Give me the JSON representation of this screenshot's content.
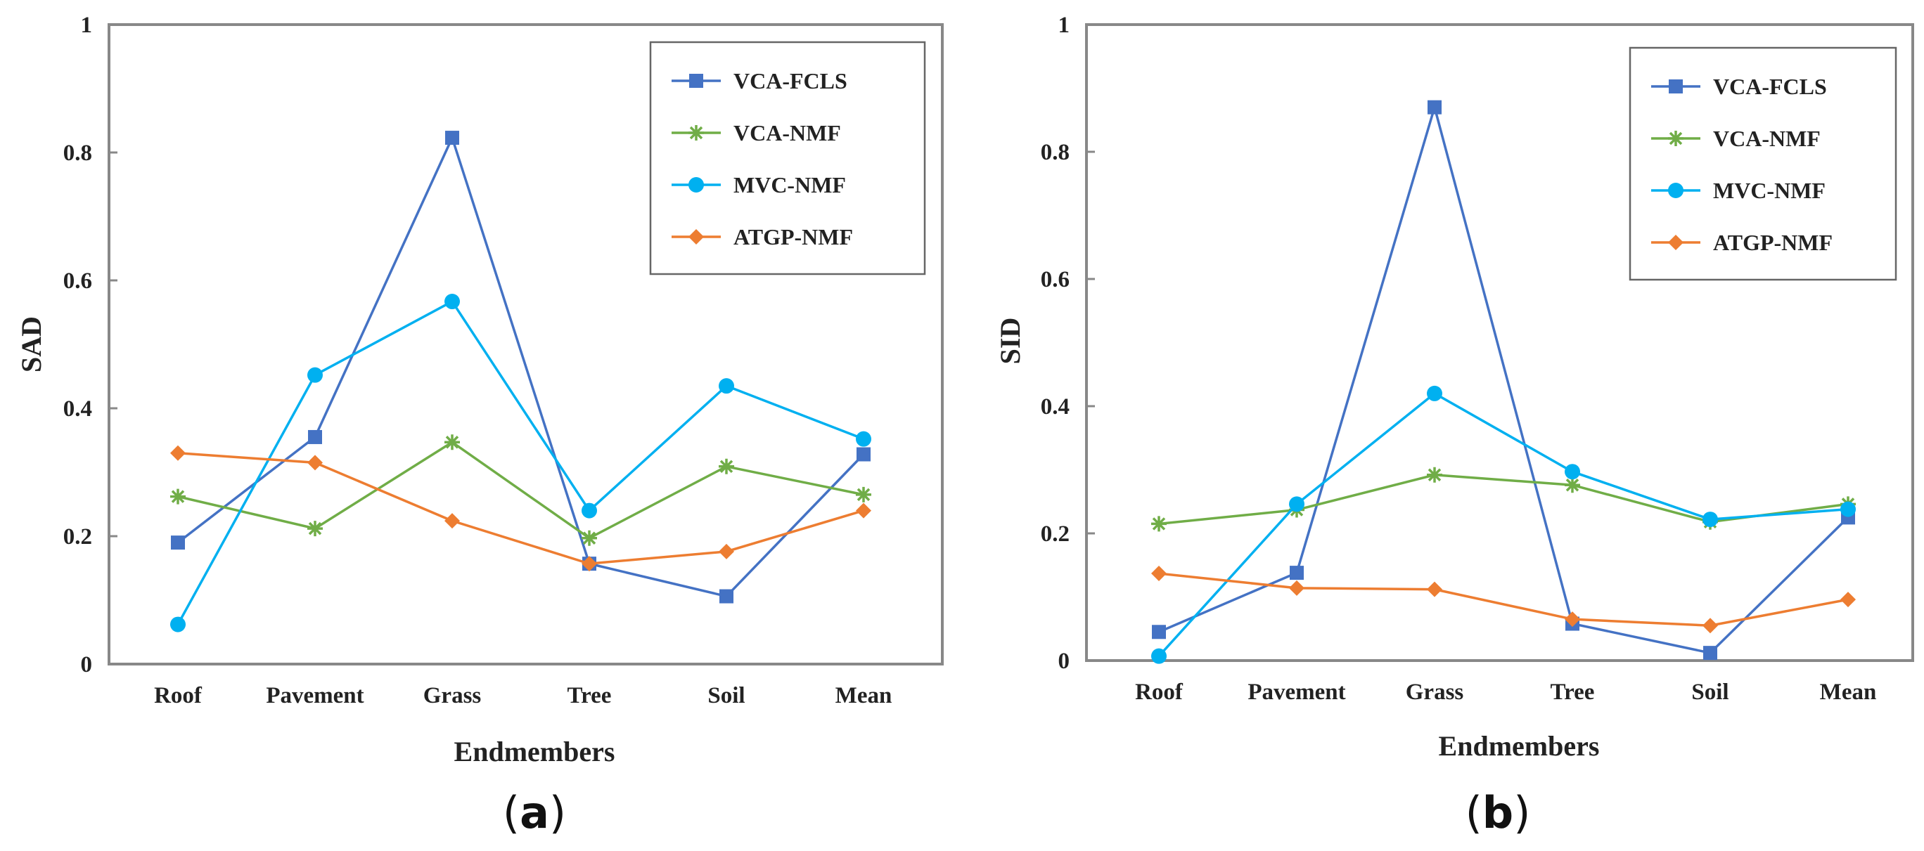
{
  "chart_data": [
    {
      "type": "line",
      "panel_label": "a",
      "title": "",
      "xlabel": "Endmembers",
      "ylabel": "SAD",
      "ylim": [
        0,
        1
      ],
      "y_ticks": [
        "0",
        "0.2",
        "0.4",
        "0.6",
        "0.8",
        "1"
      ],
      "categories": [
        "Roof",
        "Pavement",
        "Grass",
        "Tree",
        "Soil",
        "Mean"
      ],
      "legend_position": "top-right",
      "series": [
        {
          "name": "VCA-FCLS",
          "color": "#4472C4",
          "marker": "square",
          "values": [
            0.19,
            0.355,
            0.823,
            0.157,
            0.106,
            0.328
          ]
        },
        {
          "name": "VCA-NMF",
          "color": "#70AD47",
          "marker": "star",
          "values": [
            0.262,
            0.212,
            0.347,
            0.197,
            0.309,
            0.265
          ]
        },
        {
          "name": "MVC-NMF",
          "color": "#00B0F0",
          "marker": "circle",
          "values": [
            0.062,
            0.452,
            0.567,
            0.24,
            0.435,
            0.352
          ]
        },
        {
          "name": "ATGP-NMF",
          "color": "#ED7D31",
          "marker": "diamond",
          "values": [
            0.33,
            0.315,
            0.224,
            0.157,
            0.176,
            0.24
          ]
        }
      ]
    },
    {
      "type": "line",
      "panel_label": "b",
      "title": "",
      "xlabel": "Endmembers",
      "ylabel": "SID",
      "ylim": [
        0,
        1
      ],
      "y_ticks": [
        "0",
        "0.2",
        "0.4",
        "0.6",
        "0.8",
        "1"
      ],
      "categories": [
        "Roof",
        "Pavement",
        "Grass",
        "Tree",
        "Soil",
        "Mean"
      ],
      "legend_position": "top-right",
      "series": [
        {
          "name": "VCA-FCLS",
          "color": "#4472C4",
          "marker": "square",
          "values": [
            0.045,
            0.138,
            0.87,
            0.058,
            0.012,
            0.225
          ]
        },
        {
          "name": "VCA-NMF",
          "color": "#70AD47",
          "marker": "star",
          "values": [
            0.215,
            0.237,
            0.292,
            0.276,
            0.218,
            0.246
          ]
        },
        {
          "name": "MVC-NMF",
          "color": "#00B0F0",
          "marker": "circle",
          "values": [
            0.007,
            0.246,
            0.42,
            0.297,
            0.222,
            0.238
          ]
        },
        {
          "name": "ATGP-NMF",
          "color": "#ED7D31",
          "marker": "diamond",
          "values": [
            0.137,
            0.114,
            0.112,
            0.065,
            0.055,
            0.096
          ]
        }
      ]
    }
  ]
}
